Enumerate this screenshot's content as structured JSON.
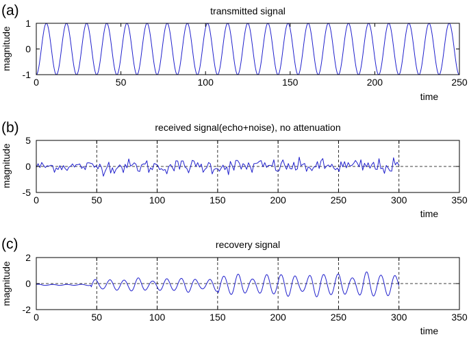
{
  "chart_data": [
    {
      "panel_label": "(a)",
      "type": "line",
      "title": "transmitted signal",
      "xlabel": "time",
      "ylabel": "magnitude",
      "xlim": [
        0,
        250
      ],
      "ylim": [
        -1,
        1
      ],
      "xticks": [
        0,
        50,
        100,
        150,
        200,
        250
      ],
      "yticks": [
        -1,
        0,
        1
      ],
      "grid": false,
      "series": [
        {
          "color": "#1f1fcc",
          "kind": "sinusoid",
          "period": 11.9,
          "amplitude": 1,
          "x_start": 0,
          "x_end": 250,
          "starts_at": -1
        }
      ]
    },
    {
      "panel_label": "(b)",
      "type": "line",
      "title": "received signal(echo+noise), no attenuation",
      "xlabel": "time",
      "ylabel": "magnitude",
      "xlim": [
        0,
        350
      ],
      "ylim": [
        -5,
        5
      ],
      "xticks": [
        0,
        50,
        100,
        150,
        200,
        250,
        300,
        350
      ],
      "yticks": [
        -5,
        0,
        5
      ],
      "grid": "dashed-major",
      "series": [
        {
          "color": "#1f1fcc",
          "kind": "noise",
          "x_start": 0,
          "x_end": 300,
          "x_step": 1.5,
          "amplitude_segments": [
            {
              "x": [
                0,
                50
              ],
              "amp": 1.0
            },
            {
              "x": [
                50,
                100
              ],
              "amp": 1.3
            },
            {
              "x": [
                100,
                150
              ],
              "amp": 1.3
            },
            {
              "x": [
                150,
                200
              ],
              "amp": 1.4
            },
            {
              "x": [
                200,
                250
              ],
              "amp": 1.3
            },
            {
              "x": [
                250,
                300
              ],
              "amp": 1.4
            }
          ]
        }
      ]
    },
    {
      "panel_label": "(c)",
      "type": "line",
      "title": "recovery signal",
      "xlabel": "time",
      "ylabel": "magnitude",
      "xlim": [
        0,
        350
      ],
      "ylim": [
        -2,
        2
      ],
      "xticks": [
        0,
        50,
        100,
        150,
        200,
        250,
        300,
        350
      ],
      "yticks": [
        -2,
        0,
        2
      ],
      "grid": "dashed-major",
      "series": [
        {
          "color": "#1f1fcc",
          "kind": "modulated-oscillation",
          "x_start": 0,
          "x_end": 300,
          "period": 11.8,
          "offset": -0.1,
          "amplitude_segments": [
            {
              "x": [
                0,
                45
              ],
              "amp": 0.05
            },
            {
              "x": [
                45,
                100
              ],
              "amp": 0.55
            },
            {
              "x": [
                100,
                150
              ],
              "amp": 0.6
            },
            {
              "x": [
                150,
                200
              ],
              "amp": 0.9
            },
            {
              "x": [
                200,
                250
              ],
              "amp": 1.0
            },
            {
              "x": [
                250,
                300
              ],
              "amp": 1.05
            }
          ]
        }
      ]
    }
  ]
}
